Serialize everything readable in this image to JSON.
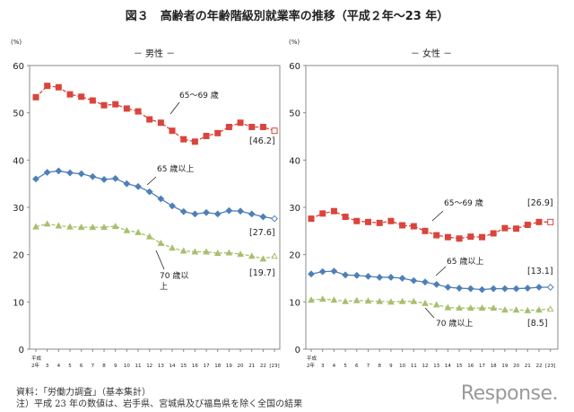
{
  "title": "図３　高齢者の年齢階級別就業率の推移（平成２年〜23 年）",
  "unit": "(%)",
  "source": "資料：「労働力調査」（基本集計）",
  "note": "注）平成 23 年の数値は、岩手県、宮城県及び福島県を除く全国の結果",
  "logo": "Response.",
  "chart_data": [
    {
      "type": "line",
      "title": "－ 男性 －",
      "ylabel": "(%)",
      "ylim": [
        0,
        60
      ],
      "yticks": [
        "0",
        "10",
        "20",
        "30",
        "40",
        "50",
        "60"
      ],
      "grid": false,
      "categories": [
        "平成 2年",
        "3",
        "4",
        "5",
        "6",
        "7",
        "8",
        "9",
        "10",
        "11",
        "12",
        "13",
        "14",
        "15",
        "16",
        "17",
        "18",
        "19",
        "20",
        "21",
        "22",
        "[23]"
      ],
      "series": [
        {
          "name": "65〜69 歳",
          "color": "#d9453c",
          "marker": "square",
          "end_label": "[46.2]",
          "values": [
            53.3,
            55.7,
            55.4,
            53.9,
            53.4,
            52.6,
            51.6,
            51.8,
            50.9,
            50.3,
            48.6,
            47.9,
            46.2,
            44.4,
            43.9,
            45.1,
            45.7,
            47.0,
            47.9,
            47.0,
            47.0,
            46.2
          ]
        },
        {
          "name": "65 歳以上",
          "color": "#4f7fb8",
          "marker": "diamond",
          "end_label": "[27.6]",
          "values": [
            36.0,
            37.4,
            37.7,
            37.3,
            37.1,
            36.5,
            35.9,
            36.1,
            35.0,
            34.4,
            33.3,
            31.8,
            30.3,
            29.1,
            28.6,
            28.9,
            28.6,
            29.3,
            29.2,
            28.6,
            28.0,
            27.6
          ]
        },
        {
          "name": "70 歳以上",
          "color": "#a8bf6e",
          "marker": "triangle",
          "end_label": "[19.7]",
          "values": [
            25.9,
            26.5,
            26.1,
            25.9,
            25.8,
            25.8,
            25.8,
            26.0,
            25.1,
            24.7,
            23.8,
            22.4,
            21.4,
            20.8,
            20.6,
            20.6,
            20.3,
            20.4,
            20.1,
            19.7,
            19.1,
            19.7
          ]
        }
      ],
      "annotations": [
        "65〜69 歳",
        "65 歳以上",
        "70 歳以",
        "上"
      ]
    },
    {
      "type": "line",
      "title": "－ 女性 －",
      "ylabel": "(%)",
      "ylim": [
        0,
        60
      ],
      "yticks": [
        "0",
        "10",
        "20",
        "30",
        "40",
        "50",
        "60"
      ],
      "grid": false,
      "categories": [
        "平成 2年",
        "3",
        "4",
        "5",
        "6",
        "7",
        "8",
        "9",
        "10",
        "11",
        "12",
        "13",
        "14",
        "15",
        "16",
        "17",
        "18",
        "19",
        "20",
        "21",
        "22",
        "[23]"
      ],
      "series": [
        {
          "name": "65〜69 歳",
          "color": "#d9453c",
          "marker": "square",
          "end_label": "[26.9]",
          "values": [
            27.6,
            28.7,
            29.2,
            28.0,
            27.1,
            26.9,
            26.7,
            27.1,
            26.2,
            26.0,
            25.0,
            24.1,
            23.7,
            23.4,
            23.8,
            23.7,
            24.5,
            25.6,
            25.5,
            26.3,
            26.9,
            26.9
          ]
        },
        {
          "name": "65 歳以上",
          "color": "#4f7fb8",
          "marker": "diamond",
          "end_label": "[13.1]",
          "values": [
            15.9,
            16.4,
            16.5,
            15.7,
            15.6,
            15.4,
            15.2,
            15.2,
            15.0,
            14.5,
            14.2,
            13.7,
            13.1,
            12.9,
            12.8,
            12.6,
            12.8,
            12.8,
            12.8,
            12.9,
            13.1,
            13.1
          ]
        },
        {
          "name": "70 歳以上",
          "color": "#a8bf6e",
          "marker": "triangle",
          "end_label": "[8.5]",
          "values": [
            10.4,
            10.6,
            10.4,
            10.1,
            10.3,
            10.2,
            10.1,
            10.0,
            10.1,
            10.1,
            9.7,
            9.4,
            8.8,
            8.7,
            8.7,
            8.7,
            8.7,
            8.3,
            8.3,
            8.2,
            8.3,
            8.5
          ]
        }
      ],
      "annotations": [
        "65〜69 歳",
        "65 歳以上",
        "70 歳以上"
      ]
    }
  ]
}
